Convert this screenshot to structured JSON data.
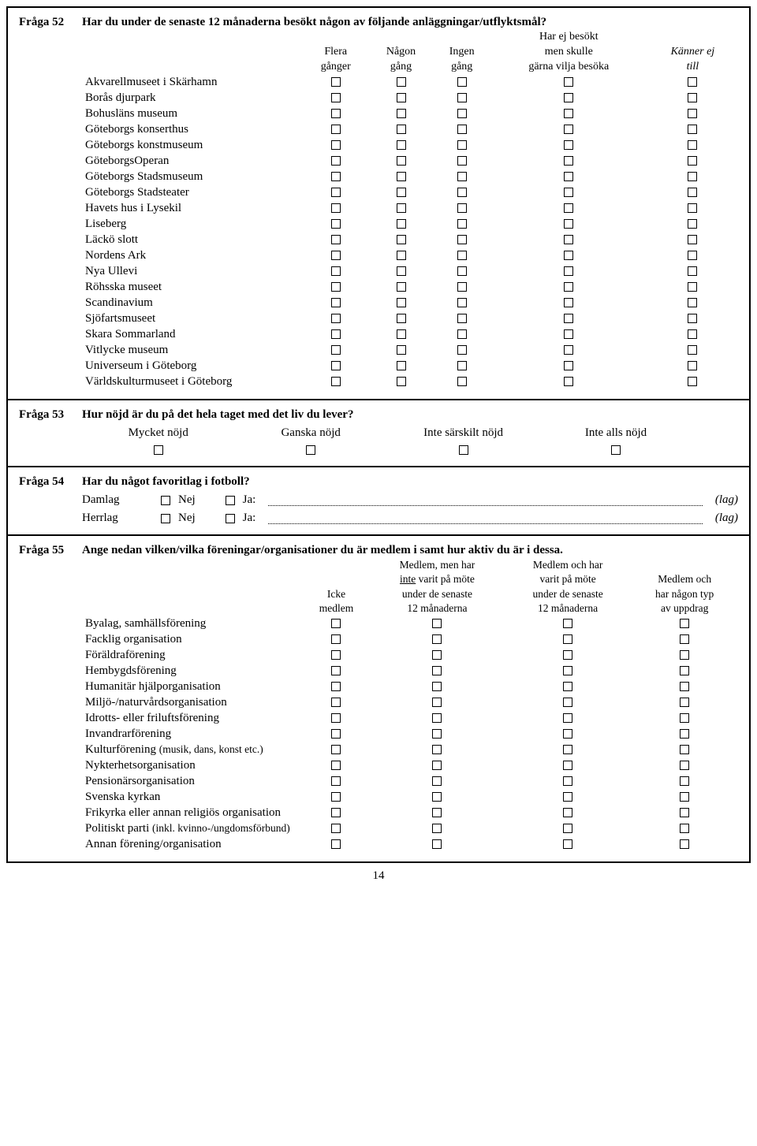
{
  "q52": {
    "label": "Fråga 52",
    "text": "Har du under de senaste 12 månaderna besökt någon av följande anläggningar/utflyktsmål?",
    "headers": {
      "c1a": "Flera",
      "c1b": "gånger",
      "c2a": "Någon",
      "c2b": "gång",
      "c3a": "Ingen",
      "c3b": "gång",
      "c4a": "Har ej besökt",
      "c4b": "men skulle",
      "c4c": "gärna vilja besöka",
      "c5a": "Känner ej",
      "c5b": "till"
    },
    "rows": [
      "Akvarellmuseet i Skärhamn",
      "Borås djurpark",
      "Bohusläns museum",
      "Göteborgs konserthus",
      "Göteborgs konstmuseum",
      "GöteborgsOperan",
      "Göteborgs Stadsmuseum",
      "Göteborgs Stadsteater",
      "Havets hus i Lysekil",
      "Liseberg",
      "Läckö slott",
      "Nordens Ark",
      "Nya Ullevi",
      "Röhsska museet",
      "Scandinavium",
      "Sjöfartsmuseet",
      "Skara Sommarland",
      "Vitlycke museum",
      "Universeum i Göteborg",
      "Världskulturmuseet i Göteborg"
    ]
  },
  "q53": {
    "label": "Fråga 53",
    "text": "Hur nöjd är du på det hela taget med det liv du lever?",
    "options": [
      "Mycket nöjd",
      "Ganska nöjd",
      "Inte särskilt nöjd",
      "Inte alls nöjd"
    ]
  },
  "q54": {
    "label": "Fråga 54",
    "text": "Har du något favoritlag i fotboll?",
    "row1": "Damlag",
    "row2": "Herrlag",
    "nej": "Nej",
    "ja": "Ja:",
    "lag": "(lag)"
  },
  "q55": {
    "label": "Fråga 55",
    "text": "Ange nedan vilken/vilka föreningar/organisationer du är medlem i samt hur aktiv du är i dessa.",
    "headers": {
      "c1a": "Icke",
      "c1b": "medlem",
      "c2a": "Medlem, men har",
      "c2b_pre": "inte",
      "c2b_post": " varit på möte",
      "c2c": "under de senaste",
      "c2d": "12 månaderna",
      "c3a": "Medlem och har",
      "c3b": "varit på möte",
      "c3c": "under de senaste",
      "c3d": "12 månaderna",
      "c4a": "Medlem och",
      "c4b": "har någon typ",
      "c4c": "av uppdrag"
    },
    "rows": [
      {
        "t": "Byalag, samhällsförening"
      },
      {
        "t": "Facklig organisation"
      },
      {
        "t": "Föräldraförening"
      },
      {
        "t": "Hembygdsförening"
      },
      {
        "t": "Humanitär hjälporganisation"
      },
      {
        "t": "Miljö-/naturvårdsorganisation"
      },
      {
        "t": "Idrotts- eller friluftsförening"
      },
      {
        "t": "Invandrarförening"
      },
      {
        "t": "Kulturförening ",
        "s": "(musik, dans, konst etc.)"
      },
      {
        "t": "Nykterhetsorganisation"
      },
      {
        "t": "Pensionärsorganisation"
      },
      {
        "t": "Svenska kyrkan"
      },
      {
        "t": "Frikyrka eller annan religiös organisation"
      },
      {
        "t": "Politiskt parti ",
        "s": "(inkl. kvinno-/ungdomsförbund)"
      },
      {
        "t": "Annan förening/organisation"
      }
    ]
  },
  "pagenum": "14"
}
